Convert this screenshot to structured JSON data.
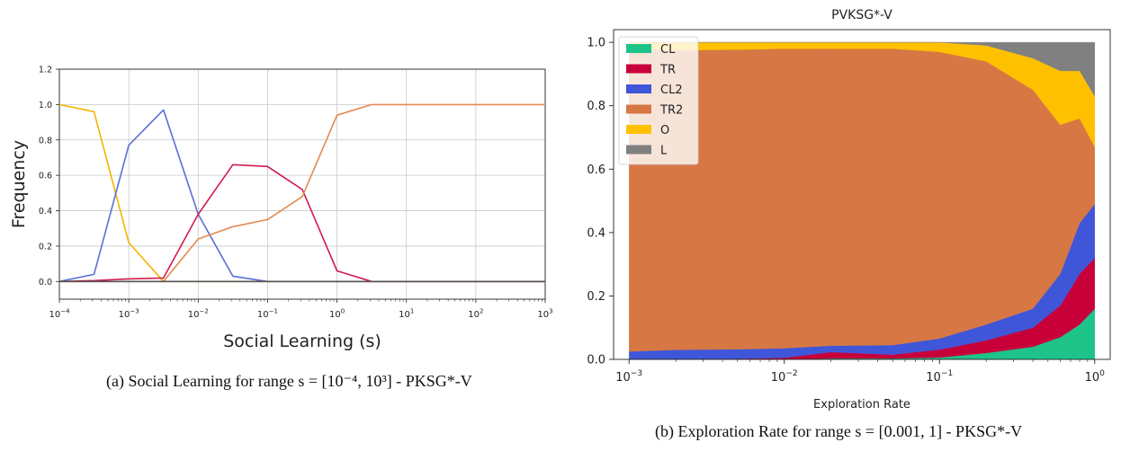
{
  "captions": {
    "a": "(a) Social Learning for range s = [10⁻⁴, 10³] - PKSG*-V",
    "b": "(b) Exploration Rate for range s = [0.001, 1] - PKSG*-V"
  },
  "chart_data": [
    {
      "type": "line",
      "title": "",
      "xlabel": "Social Learning (s)",
      "ylabel": "Frequency",
      "xscale": "log",
      "xlim": [
        0.0001,
        1000
      ],
      "ylim": [
        -0.1,
        1.2
      ],
      "grid": true,
      "yticks": [
        "0.0",
        "0.2",
        "0.4",
        "0.6",
        "0.8",
        "1.0",
        "1.2"
      ],
      "xticks": [
        {
          "base": "10",
          "exp": "−4"
        },
        {
          "base": "10",
          "exp": "−3"
        },
        {
          "base": "10",
          "exp": "−2"
        },
        {
          "base": "10",
          "exp": "−1"
        },
        {
          "base": "10",
          "exp": "0"
        },
        {
          "base": "10",
          "exp": "1"
        },
        {
          "base": "10",
          "exp": "2"
        },
        {
          "base": "10",
          "exp": "3"
        }
      ],
      "x": [
        0.0001,
        0.000316,
        0.001,
        0.00316,
        0.01,
        0.0316,
        0.1,
        0.316,
        1,
        3.16,
        10,
        31.6,
        100,
        316,
        1000
      ],
      "series": [
        {
          "color": "#f5b400",
          "values": [
            1.0,
            0.96,
            0.22,
            0.0,
            0.0,
            0.0,
            0.0,
            0.0,
            0.0,
            0.0,
            0.0,
            0.0,
            0.0,
            0.0,
            0.0
          ]
        },
        {
          "color": "#5b6fd6",
          "values": [
            0.0,
            0.04,
            0.77,
            0.97,
            0.38,
            0.03,
            0.0,
            0.0,
            0.0,
            0.0,
            0.0,
            0.0,
            0.0,
            0.0,
            0.0
          ]
        },
        {
          "color": "#d01c4e",
          "values": [
            0.0,
            0.005,
            0.015,
            0.02,
            0.38,
            0.66,
            0.65,
            0.52,
            0.06,
            0.0,
            0.0,
            0.0,
            0.0,
            0.0,
            0.0
          ]
        },
        {
          "color": "#e08a52",
          "values": [
            0.0,
            0.0,
            0.0,
            0.0,
            0.24,
            0.31,
            0.35,
            0.48,
            0.94,
            1.0,
            1.0,
            1.0,
            1.0,
            1.0,
            1.0
          ]
        },
        {
          "color": "#555555",
          "values": [
            0.0,
            0.0,
            0.0,
            0.0,
            0.0,
            0.0,
            0.0,
            0.0,
            0.0,
            0.0,
            0.0,
            0.0,
            0.0,
            0.0,
            0.0
          ]
        }
      ]
    },
    {
      "type": "area",
      "stacked": true,
      "title": "PVKSG*-V",
      "xlabel": "Exploration Rate",
      "ylabel": "",
      "xscale": "log",
      "xlim": [
        0.001,
        1
      ],
      "ylim": [
        0,
        1.0
      ],
      "grid": false,
      "legend": "top-left",
      "yticks": [
        "0.0",
        "0.2",
        "0.4",
        "0.6",
        "0.8",
        "1.0"
      ],
      "xticks": [
        {
          "base": "10",
          "exp": "−3"
        },
        {
          "base": "10",
          "exp": "−2"
        },
        {
          "base": "10",
          "exp": "−1"
        },
        {
          "base": "10",
          "exp": "0"
        }
      ],
      "x": [
        0.001,
        0.002,
        0.005,
        0.01,
        0.02,
        0.05,
        0.1,
        0.2,
        0.4,
        0.6,
        0.8,
        1.0
      ],
      "series": [
        {
          "name": "CL",
          "color": "#1ec38a",
          "values": [
            0.0,
            0.0,
            0.0,
            0.0,
            0.003,
            0.003,
            0.006,
            0.02,
            0.04,
            0.07,
            0.11,
            0.16
          ]
        },
        {
          "name": "TR",
          "color": "#c8003a",
          "values": [
            0.0,
            0.0,
            0.002,
            0.005,
            0.02,
            0.012,
            0.025,
            0.04,
            0.06,
            0.1,
            0.16,
            0.16
          ]
        },
        {
          "name": "CL2",
          "color": "#3f56d9",
          "values": [
            0.025,
            0.03,
            0.03,
            0.03,
            0.02,
            0.03,
            0.035,
            0.05,
            0.06,
            0.1,
            0.16,
            0.17
          ]
        },
        {
          "name": "TR2",
          "color": "#d67744",
          "values": [
            0.955,
            0.945,
            0.945,
            0.945,
            0.937,
            0.935,
            0.904,
            0.83,
            0.69,
            0.47,
            0.33,
            0.18
          ]
        },
        {
          "name": "O",
          "color": "#ffc000",
          "values": [
            0.02,
            0.025,
            0.023,
            0.02,
            0.02,
            0.02,
            0.03,
            0.05,
            0.1,
            0.17,
            0.15,
            0.16
          ]
        },
        {
          "name": "L",
          "color": "#808080",
          "values": [
            0.0,
            0.0,
            0.0,
            0.0,
            0.0,
            0.0,
            0.0,
            0.01,
            0.05,
            0.09,
            0.09,
            0.17
          ]
        }
      ]
    }
  ]
}
